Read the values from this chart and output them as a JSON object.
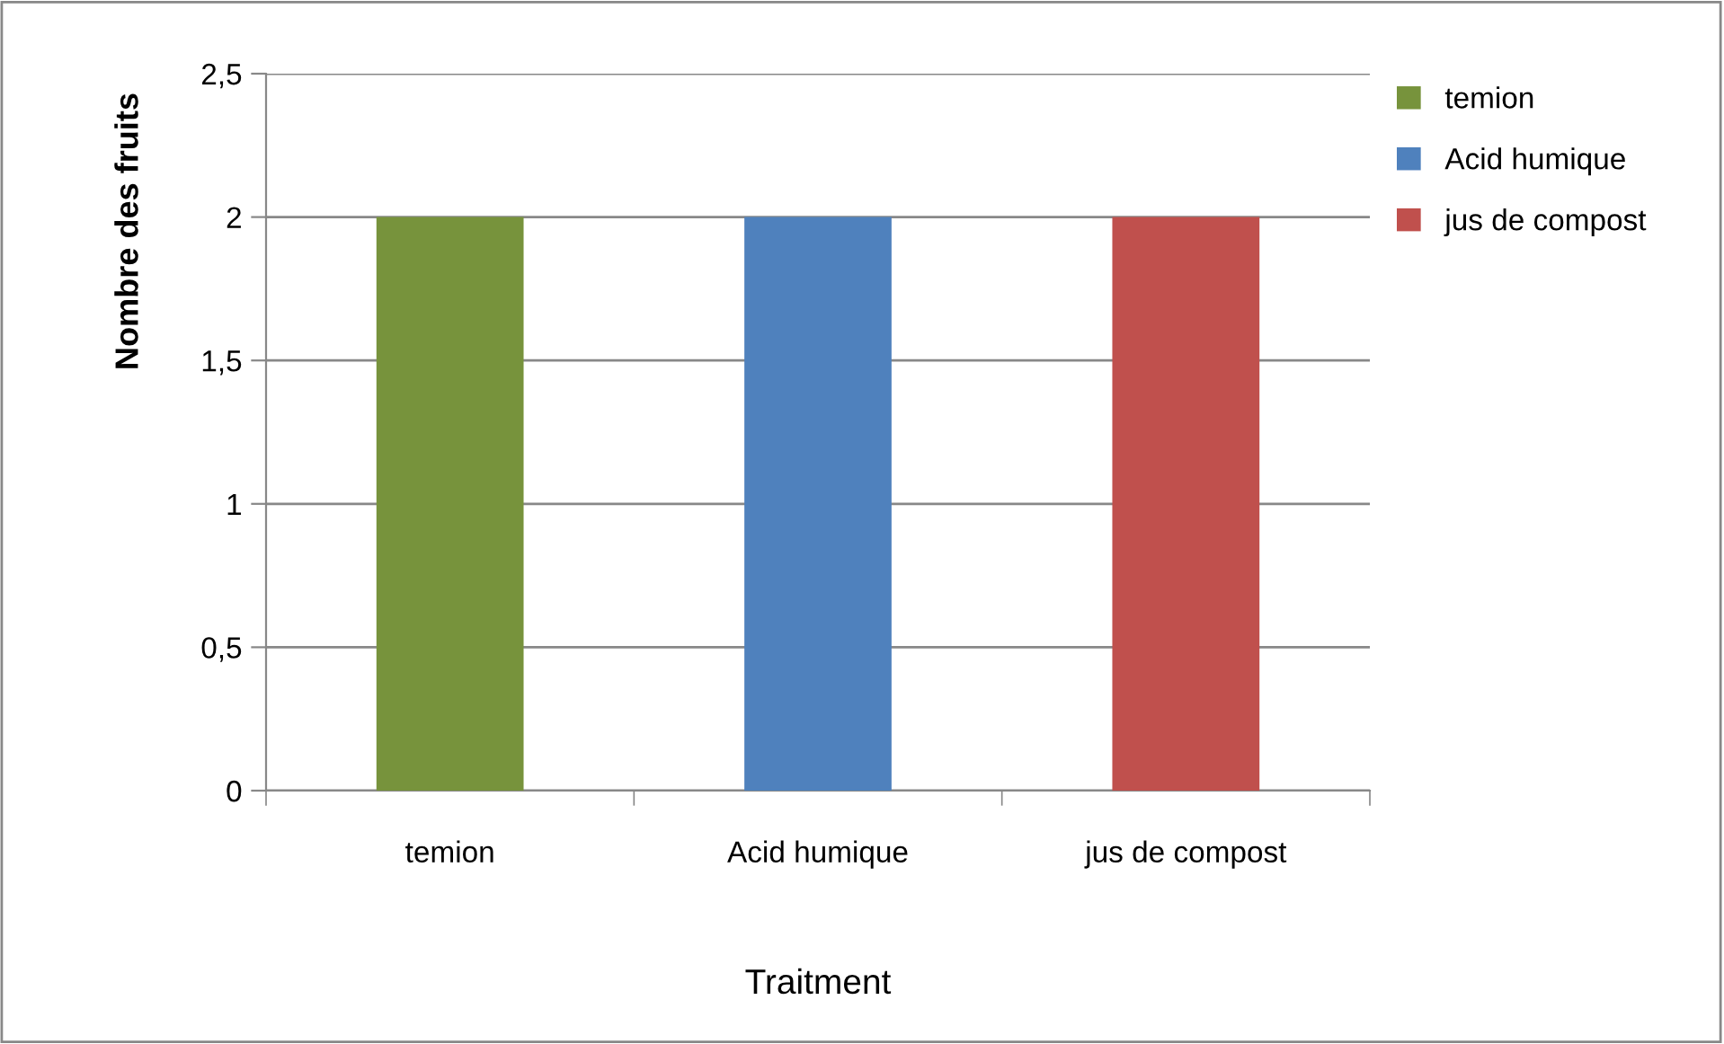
{
  "chart_data": {
    "type": "bar",
    "xlabel": "Traitment",
    "ylabel": "Nombre des fruits",
    "categories": [
      "temion",
      "Acid humique",
      "jus de compost"
    ],
    "series": [
      {
        "name": "temion",
        "color": "#77933c",
        "values": [
          2,
          null,
          null
        ]
      },
      {
        "name": "Acid humique",
        "color": "#4f81bd",
        "values": [
          null,
          2,
          null
        ]
      },
      {
        "name": "jus de compost",
        "color": "#c0504d",
        "values": [
          null,
          null,
          2
        ]
      }
    ],
    "ylim": [
      0,
      2.5
    ],
    "yticks": [
      0,
      {
        "value": 0.5,
        "label": "0,5"
      },
      1,
      {
        "value": 1.5,
        "label": "1,5"
      },
      2,
      {
        "value": 2.5,
        "label": "2,5"
      }
    ],
    "grid": "y",
    "legend": "right"
  }
}
